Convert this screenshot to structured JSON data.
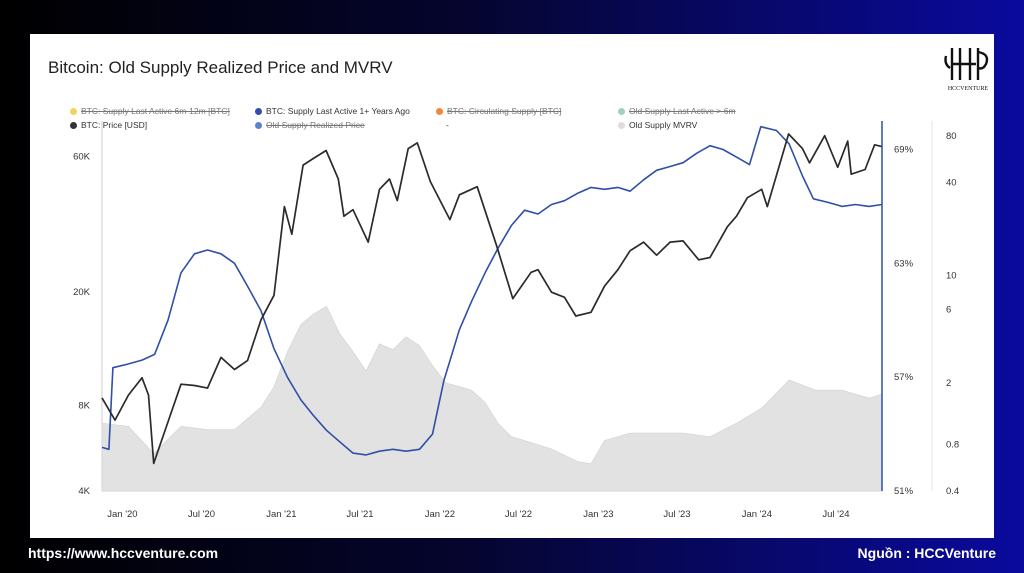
{
  "title": "Bitcoin: Old Supply Realized Price and MVRV",
  "logo_text": "HCCVENTURE",
  "footer": {
    "url": "https://www.hccventure.com",
    "source": "Nguồn : HCCVenture"
  },
  "legend": [
    {
      "label": "BTC: Supply Last Active 6m-12m [BTC]",
      "color": "#f2d35c",
      "enabled": false
    },
    {
      "label": "BTC: Supply Last Active 1+ Years Ago",
      "color": "#2f4fa8",
      "enabled": true
    },
    {
      "label": "BTC: Circulating Supply [BTC]",
      "color": "#f08a3a",
      "enabled": false
    },
    {
      "label": "Old Supply Last Active > 6m",
      "color": "#9fd3b8",
      "enabled": false
    },
    {
      "label": "BTC: Price [USD]",
      "color": "#333333",
      "enabled": true
    },
    {
      "label": "Old Supply Realized Price",
      "color": "#5b84c4",
      "enabled": false
    },
    {
      "label": "-",
      "color": "",
      "enabled": true
    },
    {
      "label": "Old Supply MVRV",
      "color": "#dddddd",
      "enabled": true
    }
  ],
  "chart_data": {
    "type": "line",
    "x_ticks": [
      "Jan '20",
      "Jul '20",
      "Jan '21",
      "Jul '21",
      "Jan '22",
      "Jul '22",
      "Jan '23",
      "Jul '23",
      "Jan '24",
      "Jul '24"
    ],
    "x_range": [
      "2019-11-15",
      "2024-10-15"
    ],
    "y_left": {
      "scale": "log",
      "ticks": [
        "4K",
        "8K",
        "20K",
        "60K"
      ],
      "tick_values": [
        4000,
        8000,
        20000,
        60000
      ],
      "range": [
        4000,
        80000
      ]
    },
    "y_mid": {
      "ticks": [
        "69%",
        "63%",
        "57%",
        "51%"
      ],
      "tick_values": [
        69,
        63,
        57,
        51
      ],
      "range": [
        51,
        70.5
      ]
    },
    "y_right": {
      "scale": "log",
      "ticks": [
        "80",
        "40",
        "10",
        "6",
        "2",
        "0.8",
        "0.4"
      ],
      "tick_values": [
        80,
        40,
        10,
        6,
        2,
        0.8,
        0.4
      ],
      "range": [
        0.4,
        100
      ]
    },
    "series": [
      {
        "name": "BTC: Price [USD]",
        "axis": "left",
        "color": "#2b2b2b",
        "points": [
          [
            "2019-11-15",
            8500
          ],
          [
            "2019-12-15",
            7100
          ],
          [
            "2020-01-15",
            8700
          ],
          [
            "2020-02-15",
            10000
          ],
          [
            "2020-03-01",
            8700
          ],
          [
            "2020-03-13",
            5000
          ],
          [
            "2020-04-15",
            7000
          ],
          [
            "2020-05-15",
            9500
          ],
          [
            "2020-06-15",
            9400
          ],
          [
            "2020-07-15",
            9200
          ],
          [
            "2020-08-15",
            11800
          ],
          [
            "2020-09-15",
            10700
          ],
          [
            "2020-10-15",
            11500
          ],
          [
            "2020-11-15",
            16000
          ],
          [
            "2020-12-15",
            19500
          ],
          [
            "2021-01-08",
            40000
          ],
          [
            "2021-01-25",
            32000
          ],
          [
            "2021-02-20",
            56000
          ],
          [
            "2021-03-15",
            59000
          ],
          [
            "2021-04-14",
            63000
          ],
          [
            "2021-05-12",
            50000
          ],
          [
            "2021-05-25",
            37000
          ],
          [
            "2021-06-15",
            39000
          ],
          [
            "2021-07-20",
            30000
          ],
          [
            "2021-08-15",
            46000
          ],
          [
            "2021-09-07",
            50000
          ],
          [
            "2021-09-25",
            42000
          ],
          [
            "2021-10-20",
            64000
          ],
          [
            "2021-11-10",
            67000
          ],
          [
            "2021-12-10",
            49000
          ],
          [
            "2022-01-24",
            36000
          ],
          [
            "2022-02-15",
            44000
          ],
          [
            "2022-03-28",
            47000
          ],
          [
            "2022-05-12",
            29000
          ],
          [
            "2022-06-18",
            19000
          ],
          [
            "2022-07-30",
            23500
          ],
          [
            "2022-08-15",
            24000
          ],
          [
            "2022-09-15",
            20000
          ],
          [
            "2022-10-15",
            19200
          ],
          [
            "2022-11-10",
            16500
          ],
          [
            "2022-12-15",
            17000
          ],
          [
            "2023-01-15",
            21000
          ],
          [
            "2023-02-15",
            24000
          ],
          [
            "2023-03-15",
            28000
          ],
          [
            "2023-04-15",
            30000
          ],
          [
            "2023-05-15",
            27000
          ],
          [
            "2023-06-15",
            30000
          ],
          [
            "2023-07-15",
            30300
          ],
          [
            "2023-08-20",
            26000
          ],
          [
            "2023-09-15",
            26500
          ],
          [
            "2023-10-25",
            34000
          ],
          [
            "2023-11-15",
            37000
          ],
          [
            "2023-12-10",
            43000
          ],
          [
            "2024-01-12",
            46000
          ],
          [
            "2024-01-25",
            40000
          ],
          [
            "2024-03-14",
            72000
          ],
          [
            "2024-04-15",
            64000
          ],
          [
            "2024-05-01",
            57000
          ],
          [
            "2024-06-05",
            71000
          ],
          [
            "2024-07-05",
            55000
          ],
          [
            "2024-07-28",
            68000
          ],
          [
            "2024-08-05",
            52000
          ],
          [
            "2024-09-06",
            54000
          ],
          [
            "2024-09-28",
            66000
          ],
          [
            "2024-10-15",
            65000
          ]
        ]
      },
      {
        "name": "BTC: Supply Last Active 1+ Years Ago",
        "axis": "mid",
        "color": "#2f4fa8",
        "points": [
          [
            "2019-11-15",
            53.3
          ],
          [
            "2019-12-01",
            53.2
          ],
          [
            "2019-12-10",
            57.5
          ],
          [
            "2020-01-15",
            57.7
          ],
          [
            "2020-02-15",
            57.9
          ],
          [
            "2020-03-15",
            58.2
          ],
          [
            "2020-04-15",
            60.0
          ],
          [
            "2020-05-15",
            62.5
          ],
          [
            "2020-06-15",
            63.5
          ],
          [
            "2020-07-15",
            63.7
          ],
          [
            "2020-08-15",
            63.5
          ],
          [
            "2020-09-15",
            63.0
          ],
          [
            "2020-10-15",
            61.8
          ],
          [
            "2020-11-15",
            60.5
          ],
          [
            "2020-12-15",
            58.5
          ],
          [
            "2021-01-15",
            57.0
          ],
          [
            "2021-02-15",
            55.8
          ],
          [
            "2021-03-15",
            55.0
          ],
          [
            "2021-04-15",
            54.2
          ],
          [
            "2021-05-15",
            53.6
          ],
          [
            "2021-06-15",
            53.0
          ],
          [
            "2021-07-15",
            52.9
          ],
          [
            "2021-08-15",
            53.1
          ],
          [
            "2021-09-15",
            53.2
          ],
          [
            "2021-10-15",
            53.1
          ],
          [
            "2021-11-15",
            53.2
          ],
          [
            "2021-12-15",
            54.0
          ],
          [
            "2022-01-10",
            56.8
          ],
          [
            "2022-02-15",
            59.5
          ],
          [
            "2022-03-15",
            61.0
          ],
          [
            "2022-04-15",
            62.5
          ],
          [
            "2022-05-15",
            63.8
          ],
          [
            "2022-06-15",
            65.0
          ],
          [
            "2022-07-15",
            65.8
          ],
          [
            "2022-08-15",
            65.6
          ],
          [
            "2022-09-15",
            66.1
          ],
          [
            "2022-10-15",
            66.3
          ],
          [
            "2022-11-15",
            66.7
          ],
          [
            "2022-12-15",
            67.0
          ],
          [
            "2023-01-15",
            66.9
          ],
          [
            "2023-02-15",
            67.0
          ],
          [
            "2023-03-15",
            66.8
          ],
          [
            "2023-04-15",
            67.4
          ],
          [
            "2023-05-15",
            67.9
          ],
          [
            "2023-06-15",
            68.1
          ],
          [
            "2023-07-15",
            68.3
          ],
          [
            "2023-08-15",
            68.8
          ],
          [
            "2023-09-15",
            69.2
          ],
          [
            "2023-10-15",
            69.0
          ],
          [
            "2023-11-15",
            68.6
          ],
          [
            "2023-12-15",
            68.2
          ],
          [
            "2024-01-10",
            70.2
          ],
          [
            "2024-02-15",
            70.0
          ],
          [
            "2024-03-15",
            69.3
          ],
          [
            "2024-04-15",
            67.6
          ],
          [
            "2024-05-10",
            66.4
          ],
          [
            "2024-06-15",
            66.2
          ],
          [
            "2024-07-15",
            66.0
          ],
          [
            "2024-08-15",
            66.1
          ],
          [
            "2024-09-15",
            66.0
          ],
          [
            "2024-10-15",
            66.1
          ]
        ]
      },
      {
        "name": "Old Supply MVRV",
        "axis": "right",
        "color": "#dedede",
        "type": "area",
        "points": [
          [
            "2019-11-15",
            1.1
          ],
          [
            "2020-01-15",
            1.05
          ],
          [
            "2020-03-13",
            0.7
          ],
          [
            "2020-05-15",
            1.05
          ],
          [
            "2020-07-15",
            1.0
          ],
          [
            "2020-09-15",
            1.0
          ],
          [
            "2020-11-15",
            1.4
          ],
          [
            "2020-12-15",
            1.9
          ],
          [
            "2021-01-15",
            3.2
          ],
          [
            "2021-02-15",
            4.8
          ],
          [
            "2021-03-15",
            5.6
          ],
          [
            "2021-04-15",
            6.3
          ],
          [
            "2021-05-15",
            4.2
          ],
          [
            "2021-06-15",
            3.2
          ],
          [
            "2021-07-15",
            2.4
          ],
          [
            "2021-08-15",
            3.6
          ],
          [
            "2021-09-15",
            3.3
          ],
          [
            "2021-10-15",
            4.0
          ],
          [
            "2021-11-15",
            3.5
          ],
          [
            "2021-12-15",
            2.6
          ],
          [
            "2022-01-15",
            2.0
          ],
          [
            "2022-02-15",
            1.9
          ],
          [
            "2022-03-15",
            1.8
          ],
          [
            "2022-04-15",
            1.5
          ],
          [
            "2022-05-15",
            1.1
          ],
          [
            "2022-06-15",
            0.9
          ],
          [
            "2022-07-15",
            0.85
          ],
          [
            "2022-09-15",
            0.75
          ],
          [
            "2022-11-15",
            0.62
          ],
          [
            "2022-12-15",
            0.6
          ],
          [
            "2023-01-15",
            0.85
          ],
          [
            "2023-03-15",
            0.95
          ],
          [
            "2023-05-15",
            0.95
          ],
          [
            "2023-07-15",
            0.95
          ],
          [
            "2023-09-15",
            0.9
          ],
          [
            "2023-11-15",
            1.1
          ],
          [
            "2024-01-15",
            1.4
          ],
          [
            "2024-03-15",
            2.1
          ],
          [
            "2024-05-15",
            1.8
          ],
          [
            "2024-07-15",
            1.8
          ],
          [
            "2024-09-15",
            1.6
          ],
          [
            "2024-10-15",
            1.7
          ]
        ]
      }
    ]
  }
}
